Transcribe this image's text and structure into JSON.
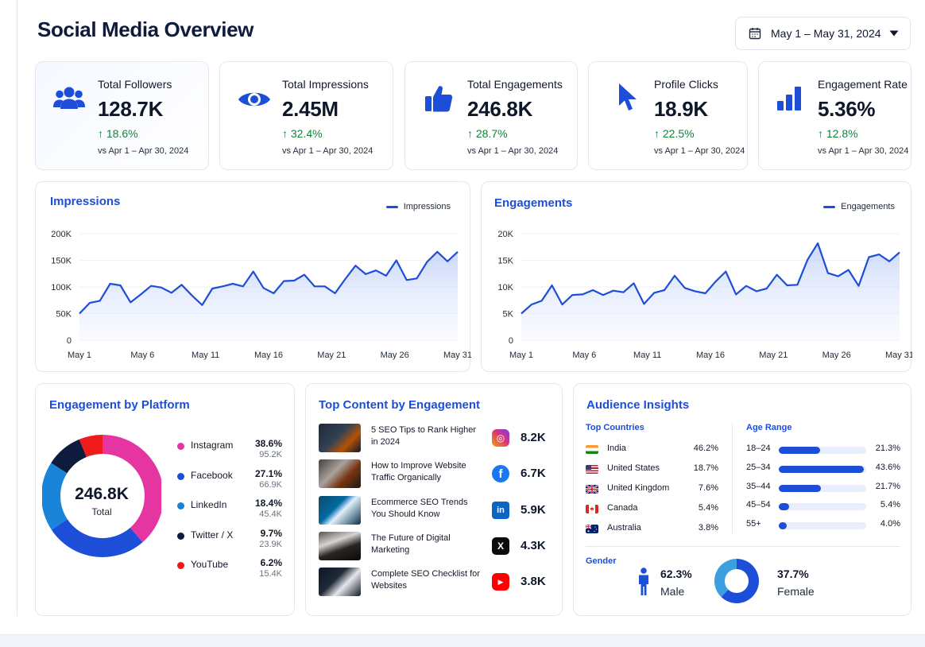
{
  "page": {
    "title": "Social Media Overview"
  },
  "date_range": {
    "label": "May 1 – May 31, 2024"
  },
  "kpis": [
    {
      "label": "Total Followers",
      "value": "128.7K",
      "change": "↑ 18.6%",
      "compare": "vs Apr 1 – Apr 30, 2024",
      "icon": "users-icon"
    },
    {
      "label": "Total Impressions",
      "value": "2.45M",
      "change": "↑ 32.4%",
      "compare": "vs Apr 1 – Apr 30, 2024",
      "icon": "eye-icon"
    },
    {
      "label": "Total Engagements",
      "value": "246.8K",
      "change": "↑ 28.7%",
      "compare": "vs Apr 1 – Apr 30, 2024",
      "icon": "thumbs-up-icon"
    },
    {
      "label": "Profile Clicks",
      "value": "18.9K",
      "change": "↑ 22.5%",
      "compare": "vs Apr 1 – Apr 30, 2024",
      "icon": "cursor-icon"
    },
    {
      "label": "Engagement Rate",
      "value": "5.36%",
      "change": "↑ 12.8%",
      "compare": "vs Apr 1 – Apr 30, 2024",
      "icon": "bar-chart-icon"
    }
  ],
  "chart_data": [
    {
      "type": "area",
      "title": "Impressions",
      "series": [
        {
          "name": "Impressions",
          "values": [
            50000,
            70000,
            74000,
            106000,
            103000,
            71000,
            86000,
            102000,
            99000,
            89000,
            104000,
            84000,
            66000,
            97000,
            101000,
            106000,
            101000,
            129000,
            98000,
            88000,
            111000,
            112000,
            123000,
            101000,
            101000,
            88000,
            115000,
            140000,
            124000,
            131000,
            121000,
            150000,
            113000,
            116000,
            147000,
            166000,
            148000,
            166000
          ]
        }
      ],
      "x_tick_labels": [
        "May 1",
        "May 6",
        "May 11",
        "May 16",
        "May 21",
        "May 26",
        "May 31"
      ],
      "y_tick_labels": [
        "0",
        "50K",
        "100K",
        "150K",
        "200K"
      ],
      "ylim": [
        0,
        200000
      ],
      "legend": "top-right",
      "grid": true,
      "color": "#1d4ed8"
    },
    {
      "type": "area",
      "title": "Engagements",
      "series": [
        {
          "name": "Engagements",
          "values": [
            5000,
            6700,
            7400,
            10300,
            6700,
            8500,
            8600,
            9400,
            8500,
            9300,
            9000,
            10700,
            6800,
            8900,
            9400,
            12100,
            9800,
            9200,
            8800,
            11000,
            12900,
            8600,
            10200,
            9200,
            9700,
            12300,
            10300,
            10400,
            15100,
            18200,
            12600,
            12000,
            13200,
            10200,
            15600,
            16100,
            14800,
            16500
          ]
        }
      ],
      "x_tick_labels": [
        "May 1",
        "May 6",
        "May 11",
        "May 16",
        "May 21",
        "May 26",
        "May 31"
      ],
      "y_tick_labels": [
        "0",
        "5K",
        "10K",
        "15K",
        "20K"
      ],
      "ylim": [
        0,
        20000
      ],
      "legend": "top-right",
      "grid": true,
      "color": "#1d4ed8"
    },
    {
      "type": "pie",
      "title": "Engagement by Platform",
      "center_value": "246.8K",
      "center_label": "Total",
      "slices": [
        {
          "name": "Instagram",
          "pct": "38.6%",
          "count": "95.2K",
          "value": 38.6,
          "color": "#e535a0"
        },
        {
          "name": "Facebook",
          "pct": "27.1%",
          "count": "66.9K",
          "value": 27.1,
          "color": "#1d4ed8"
        },
        {
          "name": "LinkedIn",
          "pct": "18.4%",
          "count": "45.4K",
          "value": 18.4,
          "color": "#1a84d8"
        },
        {
          "name": "Twitter / X",
          "pct": "9.7%",
          "count": "23.9K",
          "value": 9.7,
          "color": "#0f1b3d"
        },
        {
          "name": "YouTube",
          "pct": "6.2%",
          "count": "15.4K",
          "value": 6.2,
          "color": "#ef1b1b"
        }
      ]
    }
  ],
  "top_content": {
    "title": "Top Content by Engagement",
    "items": [
      {
        "title": "5 SEO Tips to Rank Higher in 2024",
        "platform": "instagram-icon",
        "count": "8.2K",
        "color": "#d9327a",
        "glyph": "◎"
      },
      {
        "title": "How to Improve Website Traffic Organically",
        "platform": "facebook-icon",
        "count": "6.7K",
        "color": "#1877f2",
        "glyph": "f"
      },
      {
        "title": "Ecommerce SEO Trends You Should Know",
        "platform": "linkedin-icon",
        "count": "5.9K",
        "color": "#0a66c2",
        "glyph": "in"
      },
      {
        "title": "The Future of Digital Marketing",
        "platform": "x-icon",
        "count": "4.3K",
        "color": "#0b0b0b",
        "glyph": "X"
      },
      {
        "title": "Complete SEO Checklist for Websites",
        "platform": "youtube-icon",
        "count": "3.8K",
        "color": "#ff0000",
        "glyph": "▶"
      }
    ]
  },
  "audience": {
    "title": "Audience Insights",
    "countries_label": "Top Countries",
    "countries": [
      {
        "name": "India",
        "pct": "46.2%",
        "flag": "india-flag-icon"
      },
      {
        "name": "United States",
        "pct": "18.7%",
        "flag": "us-flag-icon"
      },
      {
        "name": "United Kingdom",
        "pct": "7.6%",
        "flag": "uk-flag-icon"
      },
      {
        "name": "Canada",
        "pct": "5.4%",
        "flag": "canada-flag-icon"
      },
      {
        "name": "Australia",
        "pct": "3.8%",
        "flag": "australia-flag-icon"
      }
    ],
    "age_label": "Age Range",
    "ages": [
      {
        "range": "18–24",
        "pct": "21.3%",
        "value": 21.3
      },
      {
        "range": "25–34",
        "pct": "43.6%",
        "value": 43.6
      },
      {
        "range": "35–44",
        "pct": "21.7%",
        "value": 21.7
      },
      {
        "range": "45–54",
        "pct": "5.4%",
        "value": 5.4
      },
      {
        "range": "55+",
        "pct": "4.0%",
        "value": 4.0
      }
    ],
    "gender_label": "Gender",
    "male": {
      "pct": "62.3%",
      "label": "Male",
      "value": 62.3
    },
    "female": {
      "pct": "37.7%",
      "label": "Female",
      "value": 37.7
    }
  }
}
